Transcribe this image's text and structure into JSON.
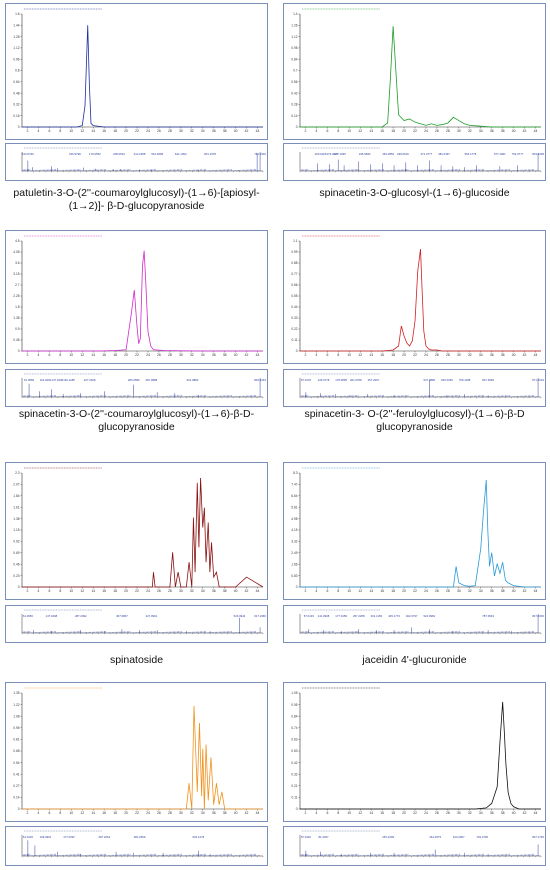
{
  "captions": [
    {
      "line1": "patuletin-3-O-(2''-coumaroylglucosyl)-(1→6)-[apiosyl-",
      "line2": "(1→2)]- β-D-glucopyranoside"
    },
    {
      "line1": "spinacetin-3-O-glucosyl-(1→6)-glucoside",
      "line2": ""
    },
    {
      "line1": "spinacetin-3-O-(2''-coumaroylglucosyl)-(1→6)-β-D-",
      "line2": "glucopyranoside"
    },
    {
      "line1": "spinacetin-3- O-(2''-feruloylglucosyl)-(1→6)-β-D",
      "line2": "glucopyranoside"
    },
    {
      "line1": "spinatoside",
      "line2": ""
    },
    {
      "line1": "jaceidin 4'-glucuronide",
      "line2": ""
    }
  ],
  "chart_data": [
    {
      "type": "line",
      "color": "#1c2f9c",
      "x": [
        1,
        2,
        3,
        4,
        5,
        6,
        7,
        8,
        9,
        10,
        11,
        12,
        12.5,
        13,
        13.3,
        13.6,
        14,
        15,
        16,
        18,
        20,
        22,
        25,
        28,
        31,
        34,
        37,
        40,
        43,
        45
      ],
      "y": [
        0,
        0,
        0,
        0,
        0,
        0,
        0,
        0,
        0,
        0,
        0,
        0.02,
        0.3,
        1.44,
        0.6,
        0.05,
        0.02,
        0.01,
        0,
        0,
        0,
        0,
        0,
        0,
        0,
        0,
        0,
        0,
        0,
        0
      ],
      "ylim": [
        0,
        1.6
      ],
      "xlim": [
        1,
        45
      ],
      "ms": {
        "peaks": [
          [
            110,
            0.55
          ],
          [
            118,
            0.2
          ],
          [
            150,
            0.25
          ],
          [
            160,
            0.15
          ],
          [
            205,
            0.18
          ],
          [
            225,
            0.12
          ],
          [
            255,
            0.1
          ],
          [
            268,
            0.1
          ],
          [
            300,
            0.08
          ],
          [
            320,
            0.05
          ],
          [
            400,
            0.05
          ],
          [
            468,
            0.05
          ],
          [
            500,
            0.9
          ],
          [
            505,
            1.0
          ]
        ],
        "labels": [
          [
            110,
            "103.0790"
          ],
          [
            190,
            "166.9798"
          ],
          [
            224,
            "179.0552"
          ],
          [
            265,
            "208.0504"
          ],
          [
            300,
            "414.2488"
          ],
          [
            330,
            "516.2808"
          ],
          [
            370,
            "641.1094"
          ],
          [
            420,
            "801.1578"
          ],
          [
            505,
            "785.1902"
          ]
        ]
      }
    },
    {
      "type": "line",
      "color": "#1b9e25",
      "x": [
        1,
        5,
        10,
        14,
        16,
        17,
        17.5,
        18,
        18.5,
        19,
        20,
        21,
        22,
        23,
        24,
        25,
        26,
        27,
        28,
        29,
        30,
        31,
        32,
        34,
        36,
        40,
        45
      ],
      "y": [
        0,
        0,
        0,
        0,
        0,
        0.05,
        0.6,
        1.25,
        0.7,
        0.15,
        0.08,
        0.1,
        0.06,
        0.04,
        0.02,
        0.04,
        0.02,
        0.03,
        0.05,
        0.12,
        0.08,
        0.04,
        0.02,
        0.01,
        0,
        0,
        0
      ],
      "ylim": [
        0,
        1.4
      ],
      "xlim": [
        1,
        45
      ],
      "ms": {
        "peaks": [
          [
            130,
            0.4
          ],
          [
            150,
            0.35
          ],
          [
            165,
            0.6
          ],
          [
            175,
            0.3
          ],
          [
            200,
            0.5
          ],
          [
            220,
            0.35
          ],
          [
            240,
            0.4
          ],
          [
            260,
            0.3
          ],
          [
            280,
            0.45
          ],
          [
            300,
            0.3
          ],
          [
            320,
            0.55
          ],
          [
            340,
            0.3
          ],
          [
            360,
            0.25
          ],
          [
            380,
            0.2
          ],
          [
            400,
            0.3
          ],
          [
            440,
            0.25
          ],
          [
            470,
            0.3
          ],
          [
            505,
            0.95
          ]
        ],
        "labels": [
          [
            135,
            "203.0026"
          ],
          [
            155,
            "179.0017"
          ],
          [
            168,
            "187.1035"
          ],
          [
            210,
            "245.9993"
          ],
          [
            250,
            "281.0859"
          ],
          [
            275,
            "299.0619"
          ],
          [
            315,
            "371.0777"
          ],
          [
            345,
            "481.0497"
          ],
          [
            390,
            "566.1778"
          ],
          [
            440,
            "677.1961"
          ],
          [
            470,
            "752.0777"
          ],
          [
            505,
            "803.2208"
          ]
        ]
      }
    },
    {
      "type": "line",
      "color": "#d02ad0",
      "x": [
        1,
        5,
        10,
        15,
        18,
        20,
        21,
        21.5,
        22,
        22.3,
        22.6,
        23,
        23.3,
        23.6,
        24,
        24.5,
        25,
        27,
        30,
        35,
        40,
        45
      ],
      "y": [
        0,
        0,
        0,
        0,
        0.02,
        0.05,
        1.6,
        2.5,
        1.0,
        0.3,
        0.5,
        3.5,
        4.1,
        2.8,
        0.8,
        0.2,
        0.05,
        0.02,
        0.01,
        0,
        0,
        0
      ],
      "ylim": [
        0,
        4.5
      ],
      "xlim": [
        1,
        45
      ],
      "ms": {
        "peaks": [
          [
            112,
            0.7
          ],
          [
            130,
            0.3
          ],
          [
            150,
            0.4
          ],
          [
            170,
            0.15
          ],
          [
            200,
            0.2
          ],
          [
            240,
            0.3
          ],
          [
            290,
            0.65
          ],
          [
            330,
            0.25
          ],
          [
            360,
            0.2
          ],
          [
            400,
            0.1
          ],
          [
            505,
            1.0
          ]
        ],
        "labels": [
          [
            112,
            "61.0584"
          ],
          [
            140,
            "119.0494"
          ],
          [
            160,
            "147.0448"
          ],
          [
            180,
            "181.1188"
          ],
          [
            215,
            "227.2028"
          ],
          [
            290,
            "283.0586"
          ],
          [
            320,
            "487.0888"
          ],
          [
            390,
            "601.0882"
          ],
          [
            505,
            "803.2233"
          ]
        ]
      }
    },
    {
      "type": "line",
      "color": "#d01f1f",
      "x": [
        1,
        5,
        10,
        14,
        16,
        18,
        19,
        19.5,
        20,
        20.5,
        21,
        21.5,
        22,
        22.5,
        23,
        23.3,
        23.6,
        24,
        24.5,
        25,
        26,
        27,
        30,
        35,
        40,
        45
      ],
      "y": [
        0,
        0,
        0,
        0,
        0,
        0.01,
        0.05,
        0.25,
        0.15,
        0.08,
        0.05,
        0.1,
        0.3,
        0.8,
        1.02,
        0.6,
        0.2,
        0.05,
        0.02,
        0.01,
        0.01,
        0,
        0,
        0,
        0,
        0
      ],
      "ylim": [
        0,
        1.1
      ],
      "xlim": [
        1,
        45
      ],
      "ms": {
        "peaks": [
          [
            110,
            0.25
          ],
          [
            135,
            0.2
          ],
          [
            160,
            0.15
          ],
          [
            185,
            0.1
          ],
          [
            215,
            0.15
          ],
          [
            260,
            0.1
          ],
          [
            320,
            0.9
          ],
          [
            350,
            0.1
          ],
          [
            380,
            0.15
          ],
          [
            420,
            0.1
          ],
          [
            505,
            1.0
          ]
        ],
        "labels": [
          [
            110,
            "97.0178"
          ],
          [
            140,
            "129.0778"
          ],
          [
            170,
            "178.0895"
          ],
          [
            195,
            "261.0768"
          ],
          [
            225,
            "257.2097"
          ],
          [
            320,
            "547.0880"
          ],
          [
            350,
            "645.2189"
          ],
          [
            380,
            "705.1188"
          ],
          [
            420,
            "827.3599"
          ],
          [
            505,
            "871.2019"
          ]
        ]
      }
    },
    {
      "type": "line",
      "color": "#8b1010",
      "x": [
        1,
        5,
        10,
        15,
        20,
        24.8,
        25,
        25.3,
        26,
        28,
        28.5,
        29,
        29.5,
        30,
        31,
        31.5,
        32,
        32.3,
        32.6,
        33,
        33.3,
        33.6,
        34,
        34.3,
        34.6,
        35,
        35.3,
        35.6,
        36,
        36.5,
        37,
        38,
        40,
        42,
        45
      ],
      "y": [
        0,
        0,
        0,
        0,
        0,
        0,
        0.3,
        0,
        0,
        0,
        0.7,
        0,
        0.3,
        0,
        0,
        0.5,
        0,
        1.4,
        0.3,
        2.1,
        0.8,
        2.2,
        1.2,
        1.6,
        0.5,
        1.3,
        0.3,
        0.9,
        0.2,
        0.3,
        0,
        0,
        0,
        0.2,
        0
      ],
      "ylim": [
        0,
        2.3
      ],
      "xlim": [
        1,
        45
      ],
      "ms": {
        "peaks": [
          [
            120,
            0.15
          ],
          [
            150,
            0.1
          ],
          [
            200,
            0.15
          ],
          [
            240,
            0.1
          ],
          [
            270,
            0.2
          ],
          [
            300,
            0.15
          ],
          [
            330,
            0.15
          ],
          [
            380,
            0.1
          ],
          [
            420,
            0.1
          ],
          [
            470,
            0.8
          ],
          [
            505,
            0.3
          ]
        ],
        "labels": [
          [
            110,
            "61.0656"
          ],
          [
            150,
            "147.0498"
          ],
          [
            200,
            "287.2092"
          ],
          [
            270,
            "367.0867"
          ],
          [
            320,
            "447.0991"
          ],
          [
            470,
            "523.0944"
          ],
          [
            505,
            "617.1966"
          ]
        ]
      }
    },
    {
      "type": "line",
      "color": "#2a9ad6",
      "x": [
        1,
        5,
        10,
        15,
        20,
        25,
        28,
        29,
        29.5,
        30,
        31,
        32,
        33,
        34,
        34.5,
        35,
        35.3,
        35.6,
        36,
        36.5,
        37,
        37.5,
        38,
        38.5,
        39,
        40,
        42,
        45
      ],
      "y": [
        0,
        0,
        0,
        0,
        0,
        0,
        0,
        0,
        1.5,
        0.3,
        0.1,
        0.05,
        0.1,
        2.8,
        5.5,
        7.8,
        4.0,
        1.5,
        2.5,
        0.8,
        1.7,
        1.0,
        1.8,
        0.5,
        0.3,
        0.1,
        0,
        0
      ],
      "ylim": [
        0,
        8.3
      ],
      "xlim": [
        1,
        45
      ],
      "ms": {
        "peaks": [
          [
            115,
            0.2
          ],
          [
            140,
            0.15
          ],
          [
            170,
            0.1
          ],
          [
            200,
            0.2
          ],
          [
            230,
            0.15
          ],
          [
            260,
            0.15
          ],
          [
            290,
            0.3
          ],
          [
            320,
            0.2
          ],
          [
            360,
            0.1
          ],
          [
            420,
            0.15
          ],
          [
            460,
            0.1
          ],
          [
            505,
            1.0
          ]
        ],
        "labels": [
          [
            115,
            "57.0133"
          ],
          [
            140,
            "141.0908"
          ],
          [
            170,
            "177.0450"
          ],
          [
            200,
            "257.2258"
          ],
          [
            230,
            "301.1150"
          ],
          [
            260,
            "445.1770"
          ],
          [
            290,
            "462.0797"
          ],
          [
            320,
            "522.0981"
          ],
          [
            420,
            "787.0523"
          ],
          [
            505,
            "847.2000"
          ]
        ]
      }
    },
    {
      "type": "line",
      "color": "#f0921e",
      "x": [
        1,
        5,
        10,
        15,
        20,
        25,
        27,
        28,
        30,
        31,
        31.5,
        32,
        32.4,
        33,
        33.4,
        33.8,
        34,
        34.3,
        34.6,
        35,
        35.5,
        36,
        36.5,
        37,
        37.5,
        38,
        39,
        40,
        45
      ],
      "y": [
        0,
        0,
        0,
        0,
        0,
        0,
        0,
        0,
        0,
        0,
        0.3,
        0,
        1.2,
        0.2,
        1.0,
        0.15,
        0.7,
        0,
        0.75,
        0.1,
        0.6,
        0.05,
        0.3,
        0.05,
        0.2,
        0,
        0,
        0,
        0
      ],
      "ylim": [
        0,
        1.35
      ],
      "xlim": [
        1,
        45
      ],
      "ms": {
        "peaks": [
          [
            110,
            0.75
          ],
          [
            122,
            0.5
          ],
          [
            160,
            0.2
          ],
          [
            200,
            0.1
          ],
          [
            260,
            0.2
          ],
          [
            290,
            0.15
          ],
          [
            340,
            0.15
          ],
          [
            400,
            0.25
          ],
          [
            420,
            0.1
          ]
        ],
        "labels": [
          [
            110,
            "61.0125"
          ],
          [
            140,
            "109.0961"
          ],
          [
            180,
            "177.0397"
          ],
          [
            240,
            "287.2064"
          ],
          [
            300,
            "381.0659"
          ],
          [
            400,
            "533.1278"
          ]
        ]
      }
    },
    {
      "type": "line",
      "color": "#111111",
      "x": [
        1,
        5,
        10,
        15,
        20,
        25,
        30,
        33,
        35,
        36,
        37,
        37.5,
        38,
        38.3,
        38.6,
        39,
        39.5,
        40,
        41,
        43,
        45
      ],
      "y": [
        0,
        0,
        0,
        0,
        0,
        0,
        0,
        0,
        0.01,
        0.05,
        0.2,
        0.6,
        0.97,
        0.7,
        0.4,
        0.15,
        0.05,
        0.02,
        0,
        0,
        0
      ],
      "ylim": [
        0,
        1.05
      ],
      "xlim": [
        1,
        45
      ],
      "ms": {
        "peaks": [
          [
            110,
            0.25
          ],
          [
            135,
            0.2
          ],
          [
            170,
            0.1
          ],
          [
            220,
            0.15
          ],
          [
            260,
            0.15
          ],
          [
            330,
            0.3
          ],
          [
            380,
            0.15
          ],
          [
            420,
            0.1
          ],
          [
            505,
            0.55
          ]
        ],
        "labels": [
          [
            110,
            "57.0192"
          ],
          [
            140,
            "81.0037"
          ],
          [
            250,
            "287.2209"
          ],
          [
            330,
            "461.0979"
          ],
          [
            370,
            "613.2967"
          ],
          [
            410,
            "749.2796"
          ],
          [
            505,
            "807.1735"
          ]
        ]
      }
    }
  ]
}
